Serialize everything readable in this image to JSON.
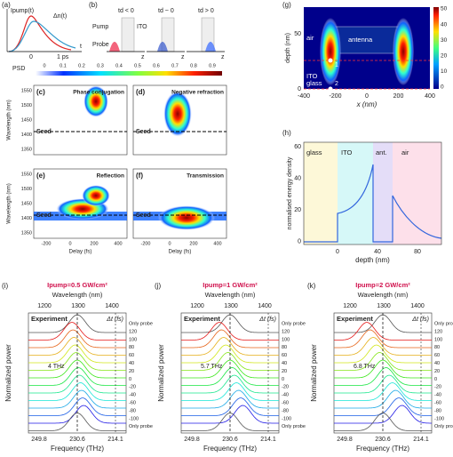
{
  "panel_a": {
    "label": "(a)",
    "texts": [
      "Ipump(t)",
      "Δn(t)",
      "0",
      "1 ps",
      "t"
    ]
  },
  "panel_b": {
    "label": "(b)",
    "texts": [
      "Pump",
      "ITO",
      "Probe",
      "td < 0",
      "td ~ 0",
      "td > 0",
      "z",
      "z",
      "z"
    ]
  },
  "psd_colorbar": {
    "title": "PSD",
    "ticks": [
      0,
      0.1,
      0.2,
      0.3,
      0.4,
      0.5,
      0.6,
      0.7,
      0.8,
      0.9
    ]
  },
  "maps": [
    {
      "label": "(c)",
      "title": "Phase conjugation"
    },
    {
      "label": "(d)",
      "title": "Negative refraction"
    },
    {
      "label": "(e)",
      "title": "Reflection"
    },
    {
      "label": "(f)",
      "title": "Transmission"
    }
  ],
  "maps_axes": {
    "y_label": "Wavelength (nm)",
    "x_label": "Delay (fs)",
    "seed": "Seed",
    "yticks": [
      1550,
      1500,
      1450,
      1400,
      1350
    ],
    "xticks": [
      -200,
      0,
      200,
      400
    ]
  },
  "panel_g": {
    "label": "(g)",
    "x_label": "x (nm)",
    "y_label": "depth (nm)",
    "xticks": [
      -400,
      -200,
      0,
      200,
      400
    ],
    "yticks": [
      50,
      0
    ],
    "colorbar_ticks": [
      50,
      40,
      30,
      20,
      10,
      0
    ],
    "regions": [
      "air",
      "antenna",
      "ITO",
      "glass"
    ],
    "points": [
      "1",
      "2"
    ]
  },
  "panel_h": {
    "label": "(h)",
    "x_label": "depth (nm)",
    "y_label": "normalised energy density",
    "xticks": [
      0,
      40,
      80
    ],
    "yticks": [
      60,
      40,
      20,
      0
    ],
    "regions": [
      "glass",
      "ITO",
      "ant.",
      "air"
    ]
  },
  "spectra": [
    {
      "label": "(i)",
      "title": "Ipump=0.5 GW/cm²",
      "annotation": "4 THz"
    },
    {
      "label": "(j)",
      "title": "Ipump=1 GW/cm²",
      "annotation": "5.7 THz"
    },
    {
      "label": "(k)",
      "title": "Ipump=2 GW/cm²",
      "annotation": "6.8 THz"
    }
  ],
  "spectra_axes": {
    "top_label": "Wavelength (nm)",
    "top_ticks": [
      1200,
      1300,
      1400
    ],
    "experiment": "Experiment",
    "delay_label": "Δt (fs)",
    "delays": [
      "Only probe",
      120,
      100,
      80,
      60,
      40,
      20,
      0,
      -20,
      -40,
      -60,
      -80,
      -100,
      "Only probe"
    ],
    "y_label": "Normalized power",
    "x_label": "Frequency (THz)",
    "bottom_ticks": [
      249.8,
      230.6,
      214.1
    ]
  }
}
